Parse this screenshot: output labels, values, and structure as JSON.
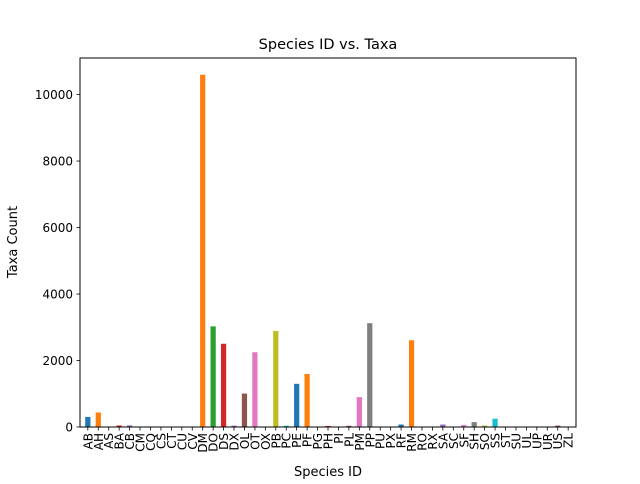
{
  "chart_data": {
    "type": "bar",
    "title": "Species ID vs. Taxa",
    "xlabel": "Species ID",
    "ylabel": "Taxa Count",
    "ylim": [
      0,
      11100
    ],
    "yticks": [
      0,
      2000,
      4000,
      6000,
      8000,
      10000
    ],
    "ytick_labels": [
      "0",
      "2000",
      "4000",
      "6000",
      "8000",
      "10000"
    ],
    "grid": false,
    "legend": "none",
    "categories": [
      "AB",
      "AH",
      "AS",
      "BA",
      "CB",
      "CM",
      "CQ",
      "CS",
      "CT",
      "CU",
      "CV",
      "DM",
      "DO",
      "DS",
      "DX",
      "OL",
      "OT",
      "OX",
      "PB",
      "PC",
      "PE",
      "PF",
      "PG",
      "PH",
      "PI",
      "PL",
      "PM",
      "PP",
      "PU",
      "PX",
      "RF",
      "RM",
      "RO",
      "RX",
      "SA",
      "SC",
      "SF",
      "SH",
      "SO",
      "SS",
      "ST",
      "SU",
      "UL",
      "UP",
      "UR",
      "US",
      "ZL"
    ],
    "values": [
      303,
      437,
      2,
      46,
      50,
      13,
      16,
      1,
      1,
      1,
      2,
      10596,
      3027,
      2504,
      40,
      1006,
      2249,
      12,
      2891,
      39,
      1299,
      1597,
      8,
      32,
      9,
      36,
      899,
      3123,
      5,
      6,
      75,
      2609,
      8,
      2,
      75,
      5,
      62,
      147,
      43,
      248,
      1,
      5,
      4,
      8,
      10,
      42,
      2
    ],
    "colors": [
      "#1f77b4",
      "#ff7f0e",
      "#2ca02c",
      "#d62728",
      "#9467bd",
      "#8c564b",
      "#e377c2",
      "#7f7f7f",
      "#bcbd22",
      "#17becf"
    ]
  }
}
